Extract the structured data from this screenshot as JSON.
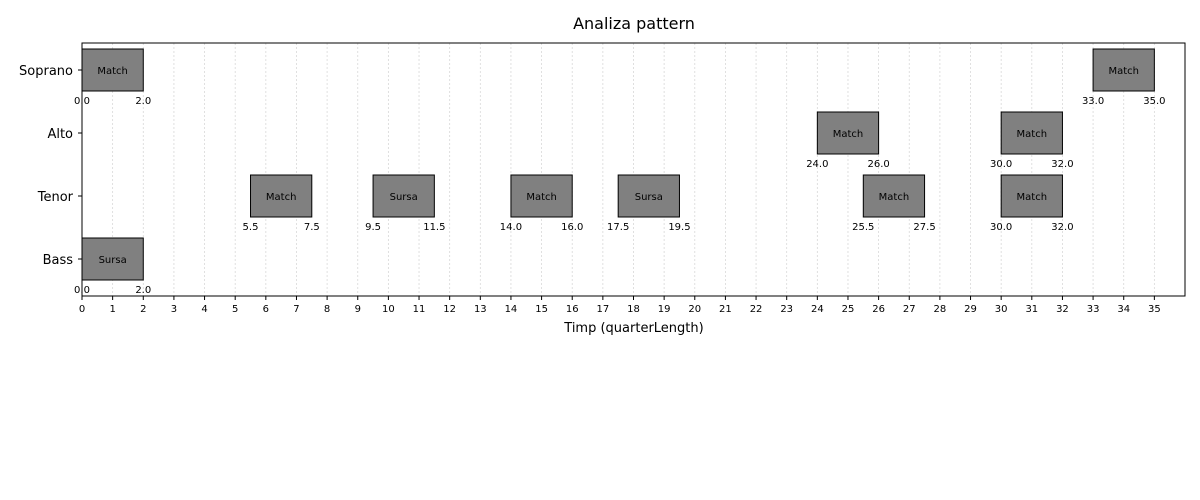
{
  "chart_data": {
    "type": "gantt",
    "title": "Analiza pattern",
    "xlabel": "Timp (quarterLength)",
    "ylabel": "",
    "xlim": [
      0,
      36
    ],
    "grid": "vertical dotted",
    "xticks": [
      0,
      1,
      2,
      3,
      4,
      5,
      6,
      7,
      8,
      9,
      10,
      11,
      12,
      13,
      14,
      15,
      16,
      17,
      18,
      19,
      20,
      21,
      22,
      23,
      24,
      25,
      26,
      27,
      28,
      29,
      30,
      31,
      32,
      33,
      34,
      35
    ],
    "categories": [
      "Soprano",
      "Alto",
      "Tenor",
      "Bass"
    ],
    "bar_color": "#808080",
    "intervals": [
      {
        "voice": "Soprano",
        "start": 0.0,
        "end": 2.0,
        "label": "Match",
        "start_label": "0.0",
        "end_label": "2.0"
      },
      {
        "voice": "Soprano",
        "start": 33.0,
        "end": 35.0,
        "label": "Match",
        "start_label": "33.0",
        "end_label": "35.0"
      },
      {
        "voice": "Alto",
        "start": 24.0,
        "end": 26.0,
        "label": "Match",
        "start_label": "24.0",
        "end_label": "26.0"
      },
      {
        "voice": "Alto",
        "start": 30.0,
        "end": 32.0,
        "label": "Match",
        "start_label": "30.0",
        "end_label": "32.0"
      },
      {
        "voice": "Tenor",
        "start": 5.5,
        "end": 7.5,
        "label": "Match",
        "start_label": "5.5",
        "end_label": "7.5"
      },
      {
        "voice": "Tenor",
        "start": 9.5,
        "end": 11.5,
        "label": "Sursa",
        "start_label": "9.5",
        "end_label": "11.5"
      },
      {
        "voice": "Tenor",
        "start": 14.0,
        "end": 16.0,
        "label": "Match",
        "start_label": "14.0",
        "end_label": "16.0"
      },
      {
        "voice": "Tenor",
        "start": 17.5,
        "end": 19.5,
        "label": "Sursa",
        "start_label": "17.5",
        "end_label": "19.5"
      },
      {
        "voice": "Tenor",
        "start": 25.5,
        "end": 27.5,
        "label": "Match",
        "start_label": "25.5",
        "end_label": "27.5"
      },
      {
        "voice": "Tenor",
        "start": 30.0,
        "end": 32.0,
        "label": "Match",
        "start_label": "30.0",
        "end_label": "32.0"
      },
      {
        "voice": "Bass",
        "start": 0.0,
        "end": 2.0,
        "label": "Sursa",
        "start_label": "0.0",
        "end_label": "2.0"
      }
    ]
  }
}
